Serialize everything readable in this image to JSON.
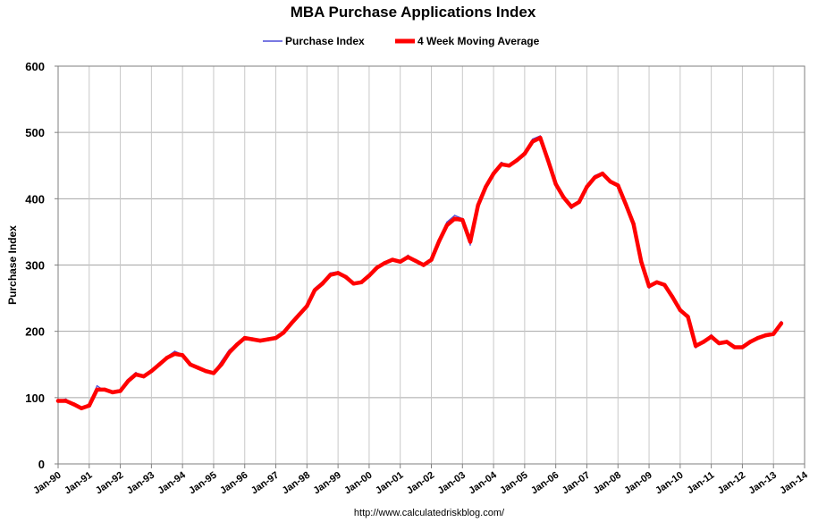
{
  "chart_data": {
    "type": "line",
    "title": "MBA Purchase Applications Index",
    "ylabel": "Purchase Index",
    "xlabel": "",
    "ylim": [
      0,
      600
    ],
    "yticks": [
      0,
      100,
      200,
      300,
      400,
      500,
      600
    ],
    "xlim": [
      1990,
      2014
    ],
    "xticks": [
      {
        "value": 1990,
        "label": "Jan-90"
      },
      {
        "value": 1991,
        "label": "Jan-91"
      },
      {
        "value": 1992,
        "label": "Jan-92"
      },
      {
        "value": 1993,
        "label": "Jan-93"
      },
      {
        "value": 1994,
        "label": "Jan-94"
      },
      {
        "value": 1995,
        "label": "Jan-95"
      },
      {
        "value": 1996,
        "label": "Jan-96"
      },
      {
        "value": 1997,
        "label": "Jan-97"
      },
      {
        "value": 1998,
        "label": "Jan-98"
      },
      {
        "value": 1999,
        "label": "Jan-99"
      },
      {
        "value": 2000,
        "label": "Jan-00"
      },
      {
        "value": 2001,
        "label": "Jan-01"
      },
      {
        "value": 2002,
        "label": "Jan-02"
      },
      {
        "value": 2003,
        "label": "Jan-03"
      },
      {
        "value": 2004,
        "label": "Jan-04"
      },
      {
        "value": 2005,
        "label": "Jan-05"
      },
      {
        "value": 2006,
        "label": "Jan-06"
      },
      {
        "value": 2007,
        "label": "Jan-07"
      },
      {
        "value": 2008,
        "label": "Jan-08"
      },
      {
        "value": 2009,
        "label": "Jan-09"
      },
      {
        "value": 2010,
        "label": "Jan-10"
      },
      {
        "value": 2011,
        "label": "Jan-11"
      },
      {
        "value": 2012,
        "label": "Jan-12"
      },
      {
        "value": 2013,
        "label": "Jan-13"
      },
      {
        "value": 2014,
        "label": "Jan-14"
      }
    ],
    "grid": true,
    "legend_position": "top",
    "series": [
      {
        "name": "Purchase Index",
        "color": "#4b4bd8",
        "x": [
          1990.0,
          1990.25,
          1990.5,
          1990.75,
          1991.0,
          1991.25,
          1991.5,
          1991.75,
          1992.0,
          1992.25,
          1992.5,
          1992.75,
          1993.0,
          1993.25,
          1993.5,
          1993.75,
          1994.0,
          1994.25,
          1994.5,
          1994.75,
          1995.0,
          1995.25,
          1995.5,
          1995.75,
          1996.0,
          1996.25,
          1996.5,
          1996.75,
          1997.0,
          1997.25,
          1997.5,
          1997.75,
          1998.0,
          1998.25,
          1998.5,
          1998.75,
          1999.0,
          1999.25,
          1999.5,
          1999.75,
          2000.0,
          2000.25,
          2000.5,
          2000.75,
          2001.0,
          2001.25,
          2001.5,
          2001.75,
          2002.0,
          2002.25,
          2002.5,
          2002.75,
          2003.0,
          2003.25,
          2003.5,
          2003.75,
          2004.0,
          2004.25,
          2004.5,
          2004.75,
          2005.0,
          2005.25,
          2005.5,
          2005.75,
          2006.0,
          2006.25,
          2006.5,
          2006.75,
          2007.0,
          2007.25,
          2007.5,
          2007.75,
          2008.0,
          2008.25,
          2008.5,
          2008.75,
          2009.0,
          2009.25,
          2009.5,
          2009.75,
          2010.0,
          2010.25,
          2010.5,
          2010.75,
          2011.0,
          2011.25,
          2011.5,
          2011.75,
          2012.0,
          2012.25,
          2012.5,
          2012.75,
          2013.0,
          2013.25
        ],
        "values": [
          95,
          98,
          88,
          82,
          90,
          118,
          110,
          108,
          112,
          128,
          138,
          130,
          142,
          152,
          162,
          170,
          165,
          148,
          145,
          140,
          138,
          155,
          172,
          182,
          192,
          188,
          185,
          188,
          190,
          200,
          215,
          228,
          240,
          265,
          275,
          288,
          290,
          282,
          270,
          275,
          285,
          298,
          305,
          310,
          305,
          315,
          305,
          298,
          310,
          340,
          365,
          375,
          370,
          330,
          395,
          420,
          440,
          455,
          450,
          460,
          470,
          490,
          495,
          455,
          420,
          400,
          385,
          395,
          420,
          435,
          440,
          425,
          420,
          390,
          360,
          300,
          265,
          275,
          270,
          250,
          230,
          225,
          175,
          185,
          195,
          180,
          185,
          175,
          175,
          185,
          190,
          195,
          195,
          215
        ]
      },
      {
        "name": "4 Week Moving Average",
        "color": "#ff0000",
        "x": [
          1990.0,
          1990.25,
          1990.5,
          1990.75,
          1991.0,
          1991.25,
          1991.5,
          1991.75,
          1992.0,
          1992.25,
          1992.5,
          1992.75,
          1993.0,
          1993.25,
          1993.5,
          1993.75,
          1994.0,
          1994.25,
          1994.5,
          1994.75,
          1995.0,
          1995.25,
          1995.5,
          1995.75,
          1996.0,
          1996.25,
          1996.5,
          1996.75,
          1997.0,
          1997.25,
          1997.5,
          1997.75,
          1998.0,
          1998.25,
          1998.5,
          1998.75,
          1999.0,
          1999.25,
          1999.5,
          1999.75,
          2000.0,
          2000.25,
          2000.5,
          2000.75,
          2001.0,
          2001.25,
          2001.5,
          2001.75,
          2002.0,
          2002.25,
          2002.5,
          2002.75,
          2003.0,
          2003.25,
          2003.5,
          2003.75,
          2004.0,
          2004.25,
          2004.5,
          2004.75,
          2005.0,
          2005.25,
          2005.5,
          2005.75,
          2006.0,
          2006.25,
          2006.5,
          2006.75,
          2007.0,
          2007.25,
          2007.5,
          2007.75,
          2008.0,
          2008.25,
          2008.5,
          2008.75,
          2009.0,
          2009.25,
          2009.5,
          2009.75,
          2010.0,
          2010.25,
          2010.5,
          2010.75,
          2011.0,
          2011.25,
          2011.5,
          2011.75,
          2012.0,
          2012.25,
          2012.5,
          2012.75,
          2013.0,
          2013.25
        ],
        "values": [
          95,
          95,
          90,
          84,
          88,
          112,
          112,
          108,
          110,
          125,
          135,
          132,
          140,
          150,
          160,
          166,
          164,
          150,
          145,
          140,
          137,
          150,
          168,
          180,
          190,
          188,
          186,
          188,
          190,
          198,
          212,
          225,
          238,
          262,
          272,
          285,
          288,
          282,
          272,
          274,
          284,
          296,
          303,
          308,
          305,
          312,
          306,
          300,
          308,
          336,
          360,
          370,
          368,
          335,
          390,
          418,
          438,
          452,
          450,
          458,
          468,
          486,
          492,
          458,
          422,
          402,
          388,
          395,
          418,
          432,
          438,
          426,
          420,
          392,
          362,
          305,
          268,
          274,
          270,
          252,
          232,
          222,
          178,
          184,
          192,
          182,
          184,
          176,
          176,
          184,
          190,
          194,
          196,
          212
        ]
      }
    ]
  },
  "source": "http://www.calculatedriskblog.com/"
}
